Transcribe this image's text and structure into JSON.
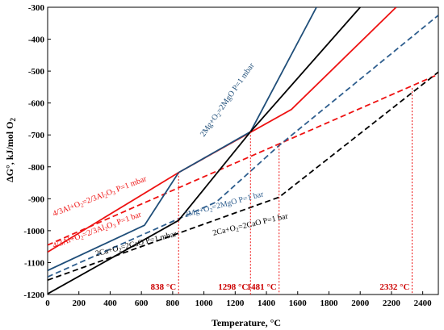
{
  "chart_data": {
    "type": "line",
    "xlabel": "Temperature, °C",
    "ylabel": "ΔG°, kJ/mol O",
    "ylabel_sub": "2",
    "xlim": [
      0,
      2500
    ],
    "ylim": [
      -1200,
      -300
    ],
    "x_ticks": [
      0,
      200,
      400,
      600,
      800,
      1000,
      1200,
      1400,
      1600,
      1800,
      2000,
      2200,
      2400
    ],
    "y_ticks": [
      -1200,
      -1100,
      -1000,
      -900,
      -800,
      -700,
      -600,
      -500,
      -400,
      -300
    ],
    "grid": false,
    "series": [
      {
        "name": "4/3Al+O2=2/3Al2O3 P=1 mbar",
        "color": "#ee1111",
        "dash": "solid",
        "points": [
          [
            0,
            -1067
          ],
          [
            838,
            -818
          ],
          [
            1560,
            -620
          ],
          [
            2230,
            -300
          ]
        ]
      },
      {
        "name": "4/3Al+O2=2/3Al2O3 P=1 bar",
        "color": "#ee1111",
        "dash": "dashed",
        "points": [
          [
            0,
            -1045
          ],
          [
            2500,
            -510
          ]
        ]
      },
      {
        "name": "2Mg+O2=2MgO P=1 mbar",
        "color": "#1f4e79",
        "dash": "solid",
        "points": [
          [
            0,
            -1125
          ],
          [
            620,
            -983
          ],
          [
            838,
            -818
          ],
          [
            1298,
            -690
          ],
          [
            1720,
            -300
          ]
        ]
      },
      {
        "name": "2Mg+O2=2MgO P=1 bar",
        "color": "#2e5e8e",
        "dash": "dashed",
        "points": [
          [
            0,
            -1145
          ],
          [
            1080,
            -910
          ],
          [
            1481,
            -733
          ],
          [
            2500,
            -325
          ]
        ]
      },
      {
        "name": "2Ca+O2=2CaO P=1 mbar",
        "color": "#000000",
        "dash": "solid",
        "points": [
          [
            0,
            -1198
          ],
          [
            838,
            -968
          ],
          [
            1298,
            -690
          ],
          [
            2000,
            -300
          ]
        ]
      },
      {
        "name": "2Ca+O2=2CaO P=1 bar",
        "color": "#000000",
        "dash": "dashed",
        "points": [
          [
            0,
            -1155
          ],
          [
            1481,
            -895
          ],
          [
            2500,
            -503
          ]
        ]
      }
    ],
    "labels": [
      {
        "series": 0,
        "parts": [
          [
            "4/3Al+O",
            false
          ],
          [
            "2",
            true
          ],
          [
            "=2/3Al",
            false
          ],
          [
            "2",
            true
          ],
          [
            "O",
            false
          ],
          [
            "3",
            true
          ],
          [
            " P=1 mbar",
            false
          ]
        ],
        "at": [
          40,
          -955
        ],
        "rotate": -21
      },
      {
        "series": 1,
        "parts": [
          [
            "4/3Al+O",
            false
          ],
          [
            "2",
            true
          ],
          [
            "=2/3Al",
            false
          ],
          [
            "2",
            true
          ],
          [
            "O",
            false
          ],
          [
            "3",
            true
          ],
          [
            " P=1 bar",
            false
          ]
        ],
        "at": [
          40,
          -1055
        ],
        "rotate": -20
      },
      {
        "series": 2,
        "parts": [
          [
            "2Mg+O",
            false
          ],
          [
            "2",
            true
          ],
          [
            "=2MgO P=1 mbar",
            false
          ]
        ],
        "at": [
          1000,
          -707
        ],
        "rotate": -55
      },
      {
        "series": 3,
        "parts": [
          [
            "2Mg+O",
            false
          ],
          [
            "2",
            true
          ],
          [
            "=2MgO P=1 bar",
            false
          ]
        ],
        "at": [
          880,
          -958
        ],
        "rotate": -15
      },
      {
        "series": 4,
        "parts": [
          [
            "2Ca+O",
            false
          ],
          [
            "2",
            true
          ],
          [
            "=2CaO P=1 mbar",
            false
          ]
        ],
        "at": [
          310,
          -1080
        ],
        "rotate": -14
      },
      {
        "series": 5,
        "parts": [
          [
            "2Ca+O",
            false
          ],
          [
            "2",
            true
          ],
          [
            "=2CaO P=1 bar",
            false
          ]
        ],
        "at": [
          1060,
          -1015
        ],
        "rotate": -13
      }
    ],
    "markers": [
      {
        "x": 838,
        "y": -818,
        "label": "838 °C"
      },
      {
        "x": 1298,
        "y": -690,
        "label": "1298 °C"
      },
      {
        "x": 1481,
        "y": -733,
        "label": "1481 °C"
      },
      {
        "x": 2332,
        "y": -553,
        "label": "2332 °C"
      }
    ]
  }
}
